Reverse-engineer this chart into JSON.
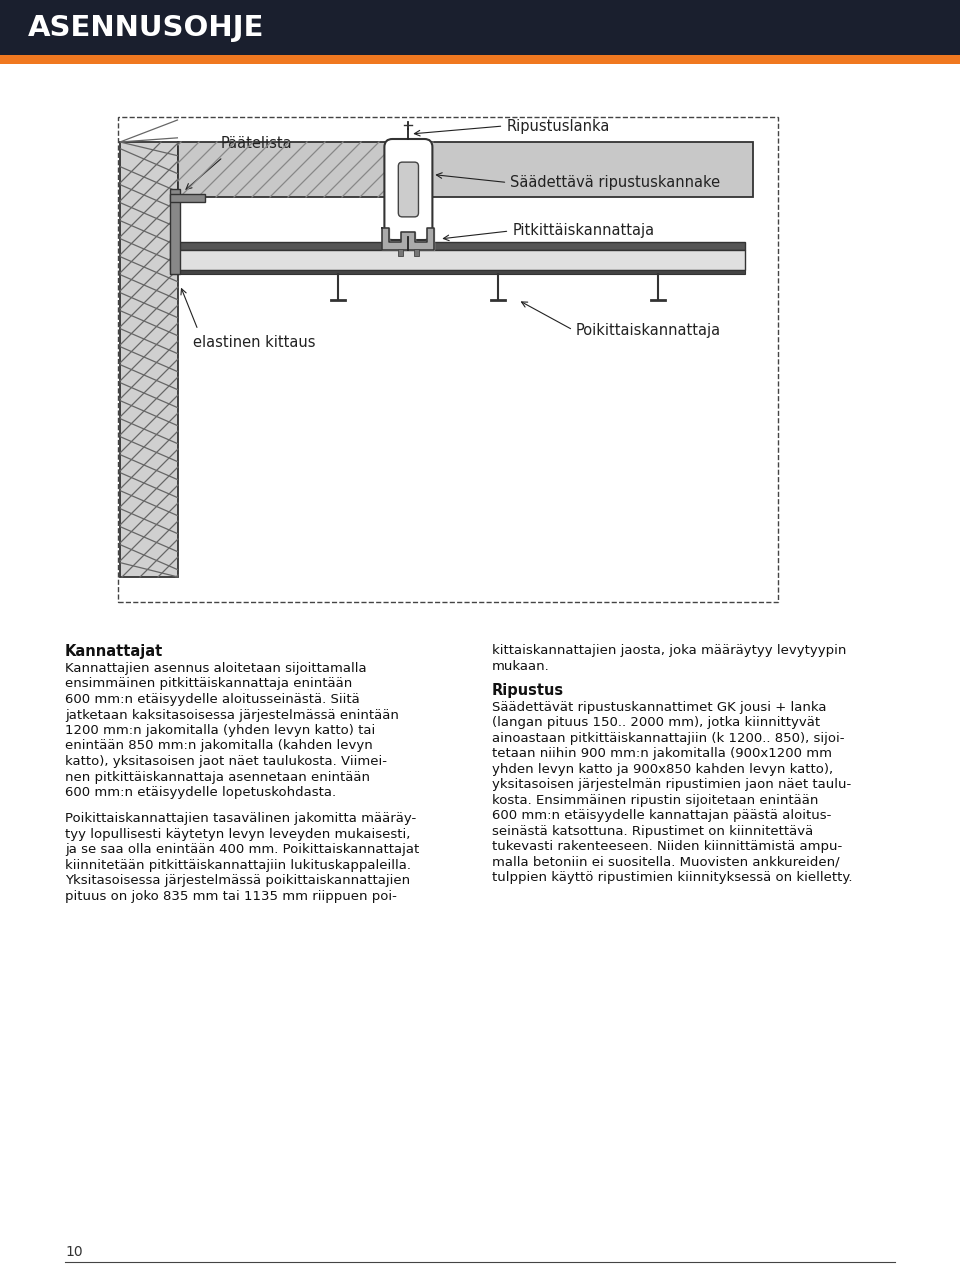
{
  "title": "ASENNUSOHJE",
  "title_bg_color": "#1a1f2e",
  "title_text_color": "#ffffff",
  "accent_color": "#f07820",
  "page_bg_color": "#ffffff",
  "page_number": "10",
  "section1_title": "Kannattajat",
  "section1_body_lines": [
    "Kannattajien asennus aloitetaan sijoittamalla",
    "ensimmäinen pitkittäiskannattaja enintään",
    "600 mm:n etäisyydelle aloitusseinästä. Siitä",
    "jatketaan kaksitasoisessa järjestelmässä enintään",
    "1200 mm:n jakomitalla (yhden levyn katto) tai",
    "enintään 850 mm:n jakomitalla (kahden levyn",
    "katto), yksitasoisen jaot näet taulukosta. Viimei-",
    "nen pitkittäiskannattaja asennetaan enintään",
    "600 mm:n etäisyydelle lopetuskohdasta.",
    "",
    "Poikittaiskannattajien tasavälinen jakomitta määräy-",
    "tyy lopullisesti käytetyn levyn leveyden mukaisesti,",
    "ja se saa olla enintään 400 mm. Poikittaiskannattajat",
    "kiinnitetään pitkittäiskannattajiin lukituskappaleilla.",
    "Yksitasoisessa järjestelmässä poikittaiskannattajien",
    "pituus on joko 835 mm tai 1135 mm riippuen poi-"
  ],
  "section1_right_lines": [
    "kittaiskannattajien jaosta, joka määräytyy levytyypin",
    "mukaan."
  ],
  "section2_title": "Ripustus",
  "section2_body_lines": [
    "Säädettävät ripustuskannattimet GK jousi + lanka",
    "(langan pituus 150.. 2000 mm), jotka kiinnittyvät",
    "ainoastaan pitkittäiskannattajiin (k 1200.. 850), sijoi-",
    "tetaan niihin 900 mm:n jakomitalla (900x1200 mm",
    "yhden levyn katto ja 900x850 kahden levyn katto),",
    "yksitasoisen järjestelmän ripustimien jaon näet taulu-",
    "kosta. Ensimmäinen ripustin sijoitetaan enintään",
    "600 mm:n etäisyydelle kannattajan päästä aloitus-",
    "seinästä katsottuna. Ripustimet on kiinnitettävä",
    "tukevasti rakenteeseen. Niiden kiinnittämistä ampu-",
    "malla betoniin ei suositella. Muovisten ankkureiden/",
    "tulppien käyttö ripustimien kiinnityksessä on kielletty."
  ]
}
